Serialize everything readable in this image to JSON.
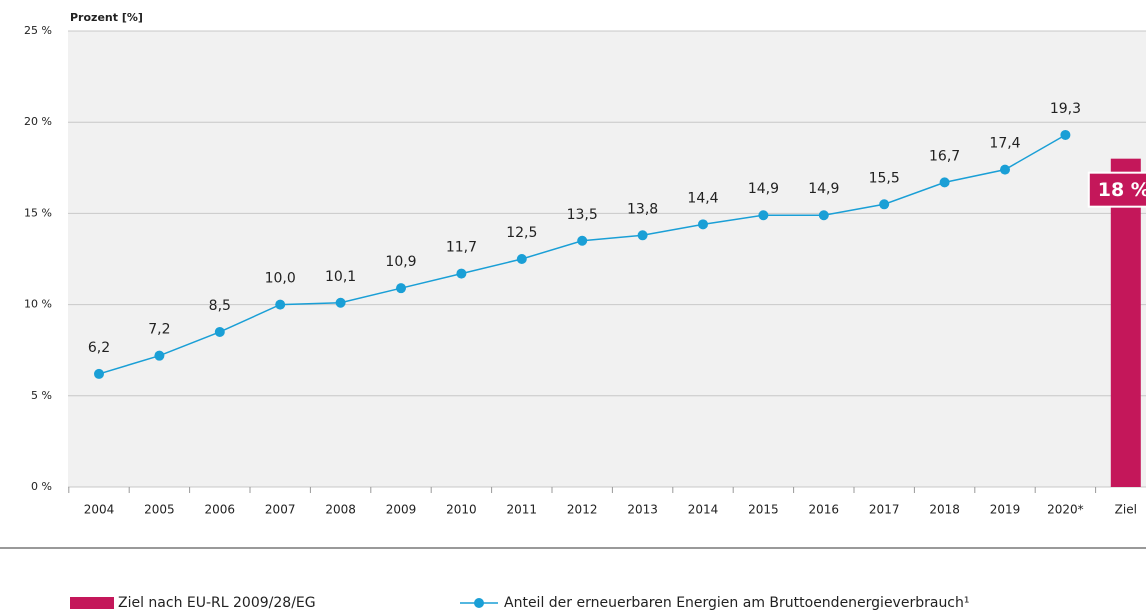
{
  "chart_data": {
    "type": "line",
    "y_axis_label": "Prozent [%]",
    "categories": [
      "2004",
      "2005",
      "2006",
      "2007",
      "2008",
      "2009",
      "2010",
      "2011",
      "2012",
      "2013",
      "2014",
      "2015",
      "2016",
      "2017",
      "2018",
      "2019",
      "2020*",
      "Ziel"
    ],
    "ylim": [
      0,
      25
    ],
    "yticks": [
      {
        "value": 0,
        "label": "0 %"
      },
      {
        "value": 5,
        "label": "5 %"
      },
      {
        "value": 10,
        "label": "10 %"
      },
      {
        "value": 15,
        "label": "15 %"
      },
      {
        "value": 20,
        "label": "20 %"
      },
      {
        "value": 25,
        "label": "25 %"
      }
    ],
    "grid": true,
    "legend": "bottom",
    "series": [
      {
        "name": "Ziel nach EU-RL 2009/28/EG",
        "type": "bar",
        "color": "#c4175a",
        "values": [
          null,
          null,
          null,
          null,
          null,
          null,
          null,
          null,
          null,
          null,
          null,
          null,
          null,
          null,
          null,
          null,
          null,
          18
        ],
        "value_labels": [
          null,
          null,
          null,
          null,
          null,
          null,
          null,
          null,
          null,
          null,
          null,
          null,
          null,
          null,
          null,
          null,
          null,
          "18 %"
        ]
      },
      {
        "name": "Anteil der erneuerbaren Energien am Bruttoendenergieverbrauch¹",
        "type": "line",
        "color": "#1a9fd6",
        "values": [
          6.2,
          7.2,
          8.5,
          10.0,
          10.1,
          10.9,
          11.7,
          12.5,
          13.5,
          13.8,
          14.4,
          14.9,
          14.9,
          15.5,
          16.7,
          17.4,
          19.3,
          null
        ],
        "value_labels": [
          "6,2",
          "7,2",
          "8,5",
          "10,0",
          "10,1",
          "10,9",
          "11,7",
          "12,5",
          "13,5",
          "13,8",
          "14,4",
          "14,9",
          "14,9",
          "15,5",
          "16,7",
          "17,4",
          "19,3",
          null
        ]
      }
    ]
  }
}
